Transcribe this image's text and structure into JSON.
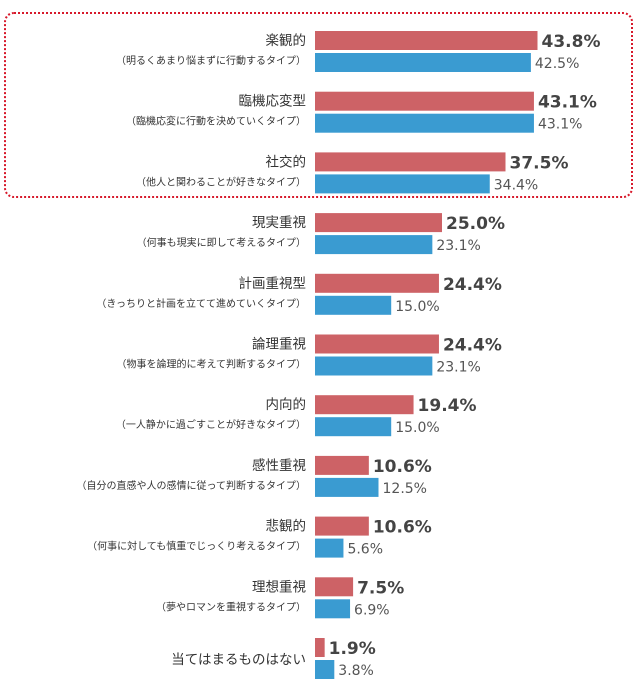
{
  "colors": {
    "series_a": "#cd6266",
    "series_b": "#3a9bd1",
    "highlight": "#d7192b"
  },
  "chart_data": {
    "type": "bar",
    "orientation": "horizontal",
    "categories": [
      "楽観的",
      "臨機応変型",
      "社交的",
      "現実重視",
      "計画重視型",
      "論理重視",
      "内向的",
      "感性重視",
      "悲観的",
      "理想重視",
      "当てはまるものはない"
    ],
    "category_notes": [
      "（明るくあまり悩まずに行動するタイプ）",
      "（臨機応変に行動を決めていくタイプ）",
      "（他人と関わることが好きなタイプ）",
      "（何事も現実に即して考えるタイプ）",
      "（きっちりと計画を立てて進めていくタイプ）",
      "（物事を論理的に考えて判断するタイプ）",
      "（一人静かに過ごすことが好きなタイプ）",
      "（自分の直感や人の感情に従って判断するタイプ）",
      "（何事に対しても慎重でじっくり考えるタイプ）",
      "（夢やロマンを重視するタイプ）",
      ""
    ],
    "series": [
      {
        "values": [
          43.8,
          43.1,
          37.5,
          25.0,
          24.4,
          24.4,
          19.4,
          10.6,
          10.6,
          7.5,
          1.9
        ]
      },
      {
        "values": [
          42.5,
          43.1,
          34.4,
          23.1,
          15.0,
          23.1,
          15.0,
          12.5,
          5.6,
          6.9,
          3.8
        ]
      }
    ],
    "value_suffix": "%",
    "xlim": [
      0,
      50
    ],
    "grid": false,
    "highlighted_categories": [
      0,
      1,
      2
    ]
  }
}
